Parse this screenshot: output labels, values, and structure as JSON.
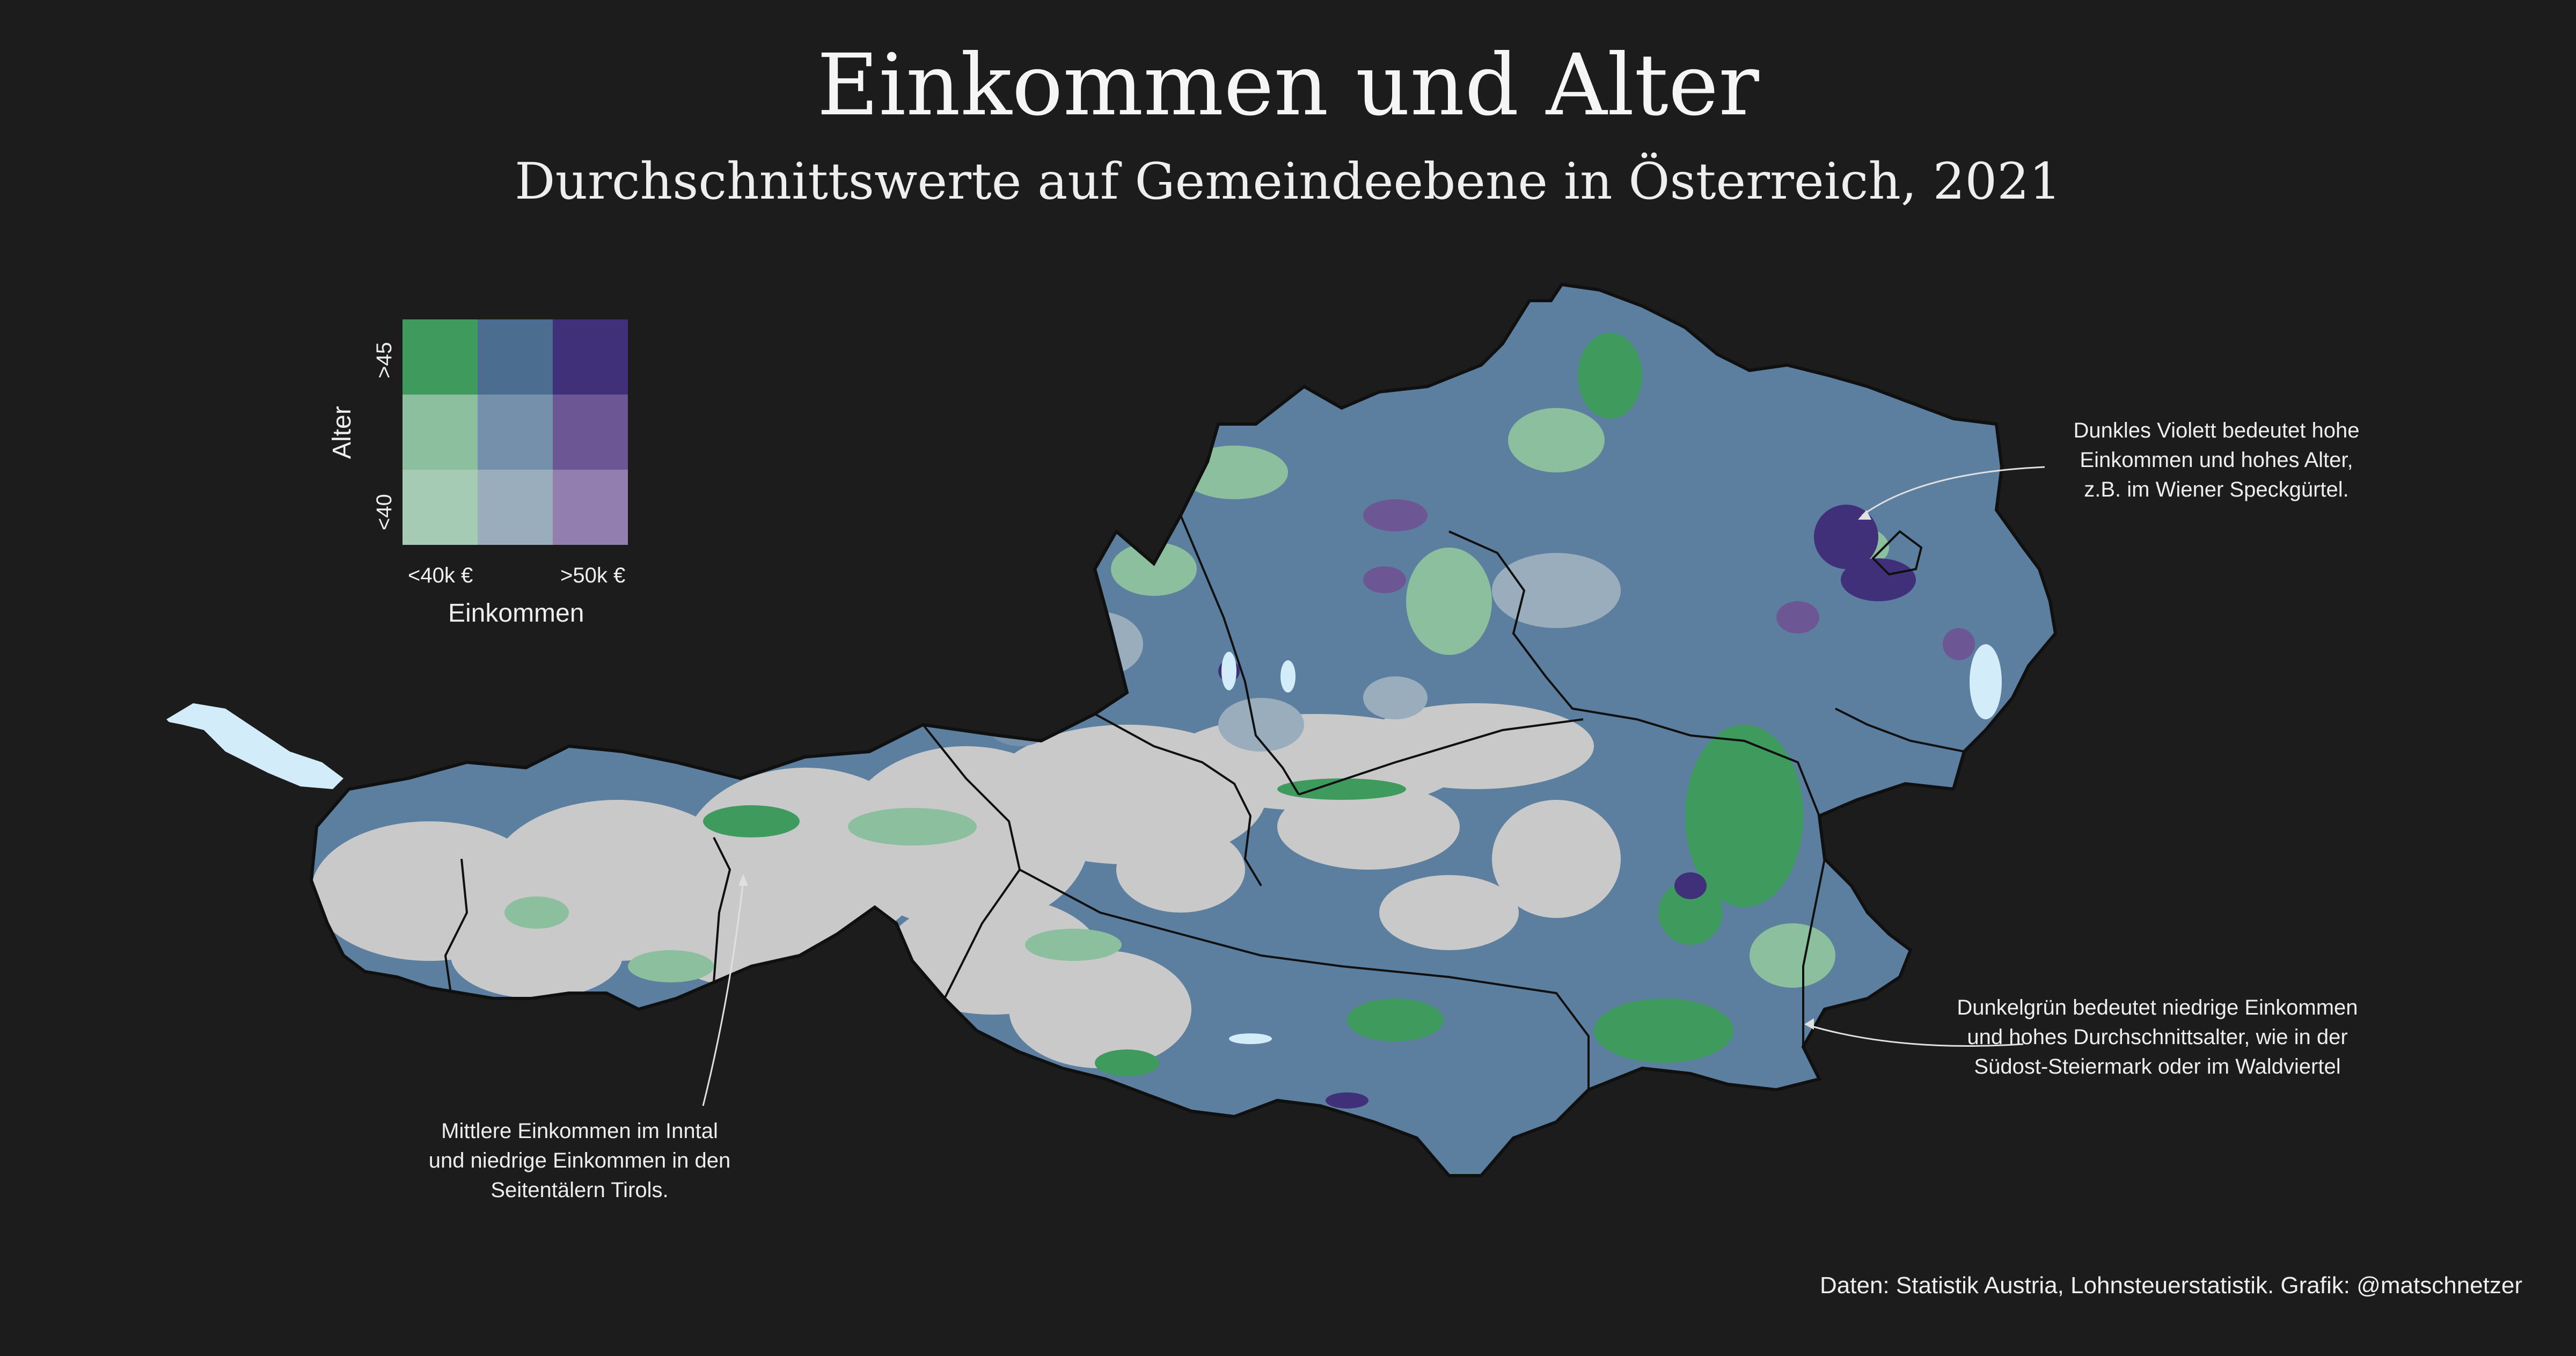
{
  "title": "Einkommen und Alter",
  "subtitle": "Durchschnittswerte auf Gemeindeebene in Österreich, 2021",
  "legend": {
    "y_axis_title": "Alter",
    "y_low": "<40",
    "y_high": ">45",
    "x_axis_title": "Einkommen",
    "x_low": "<40k €",
    "x_high": ">50k €",
    "colors": [
      [
        "#3f9a5e",
        "#4a6d90",
        "#40307a"
      ],
      [
        "#8cbf9e",
        "#7590aa",
        "#6c5694"
      ],
      [
        "#a6cbb5",
        "#9aadbc",
        "#927fb0"
      ]
    ]
  },
  "map": {
    "land_base_color": "#5c7f9f",
    "alpine_color": "#c9c9c9",
    "water_color": "#d3ecfa",
    "border_color": "#101010"
  },
  "annotations": {
    "vienna": {
      "lines": [
        "Dunkles Violett bedeutet hohe",
        "Einkommen und hohes Alter,",
        "z.B. im Wiener Speckgürtel."
      ]
    },
    "styria": {
      "lines": [
        "Dunkelgrün bedeutet niedrige Einkommen",
        "und hohes Durchschnittsalter, wie in der",
        "Südost-Steiermark oder im Waldviertel"
      ]
    },
    "tyrol": {
      "lines": [
        "Mittlere Einkommen im Inntal",
        "und niedrige Einkommen in den",
        "Seitentälern Tirols."
      ]
    }
  },
  "caption": "Daten: Statistik Austria, Lohnsteuerstatistik. Grafik: @matschnetzer"
}
